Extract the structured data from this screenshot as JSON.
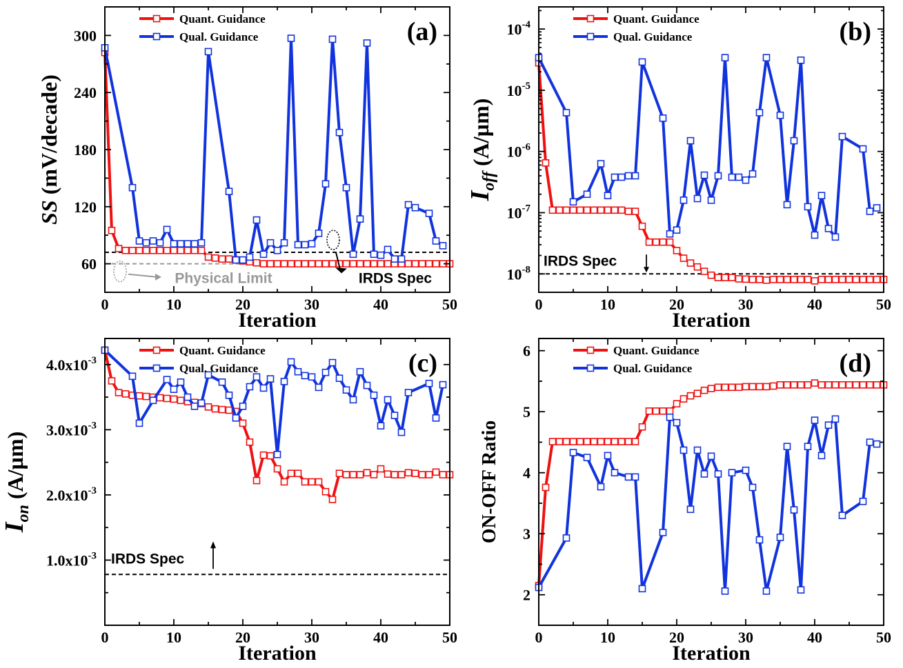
{
  "chart_data": [
    {
      "id": "a",
      "type": "line",
      "panel_label": "(a)",
      "xlabel": "Iteration",
      "ylabel_main": "SS",
      "ylabel_rest": " (mV/decade)",
      "xlim": [
        0,
        50
      ],
      "ylim": [
        30,
        330
      ],
      "yscale": "linear",
      "xticks": [
        0,
        10,
        20,
        30,
        40,
        50
      ],
      "yticks": [
        60,
        120,
        180,
        240,
        300
      ],
      "ytick_labels": [
        "60",
        "120",
        "180",
        "240",
        "300"
      ],
      "legend_position": "top-center",
      "series": [
        {
          "name": "Quant. Guidance",
          "color": "#ee1111",
          "x": [
            0,
            1,
            2,
            3,
            4,
            5,
            6,
            7,
            8,
            9,
            10,
            11,
            12,
            13,
            14,
            15,
            16,
            17,
            18,
            19,
            20,
            21,
            22,
            23,
            24,
            25,
            26,
            27,
            28,
            29,
            30,
            31,
            32,
            33,
            34,
            35,
            36,
            37,
            38,
            39,
            40,
            41,
            42,
            43,
            44,
            45,
            46,
            47,
            48,
            49,
            50
          ],
          "y": [
            282,
            95,
            76,
            74,
            74,
            74,
            74,
            74,
            74,
            74,
            74,
            74,
            74,
            74,
            74,
            67,
            66,
            65,
            65,
            64,
            63,
            62,
            61,
            60,
            60,
            60,
            60,
            60,
            60,
            60,
            60,
            60,
            60,
            60,
            60,
            60,
            60,
            60,
            60,
            60,
            60,
            60,
            60,
            60,
            60,
            60,
            60,
            60,
            60,
            60,
            60
          ]
        },
        {
          "name": "Qual. Guidance",
          "color": "#1133dd",
          "x": [
            0,
            4,
            5,
            6,
            7,
            8,
            9,
            10,
            11,
            12,
            13,
            14,
            15,
            18,
            19,
            20,
            21,
            22,
            23,
            24,
            25,
            26,
            27,
            28,
            29,
            30,
            31,
            32,
            33,
            34,
            35,
            36,
            37,
            38,
            39,
            40,
            41,
            42,
            43,
            44,
            45,
            47,
            48,
            49
          ],
          "y": [
            287,
            140,
            84,
            82,
            84,
            82,
            96,
            81,
            81,
            81,
            81,
            82,
            283,
            136,
            64,
            64,
            67,
            106,
            70,
            82,
            74,
            82,
            297,
            80,
            80,
            81,
            92,
            144,
            296,
            198,
            140,
            70,
            107,
            292,
            70,
            69,
            75,
            65,
            65,
            122,
            119,
            113,
            84,
            79
          ]
        }
      ],
      "reference_lines": [
        {
          "name": "IRDS Spec",
          "y": 72
        },
        {
          "name": "Physical Limit",
          "y": 60
        }
      ]
    },
    {
      "id": "b",
      "type": "line",
      "panel_label": "(b)",
      "xlabel": "Iteration",
      "ylabel_main": "I",
      "ylabel_sub": "off",
      "ylabel_rest": " (A/µm)",
      "xlim": [
        0,
        50
      ],
      "ylim": [
        5e-09,
        0.00023
      ],
      "yscale": "log",
      "xticks": [
        0,
        10,
        20,
        30,
        40,
        50
      ],
      "yticks": [
        1e-08,
        1e-07,
        1e-06,
        1e-05,
        0.0001
      ],
      "ytick_exponents": [
        "-8",
        "-7",
        "-6",
        "-5",
        "-4"
      ],
      "ytick_base": "10",
      "legend_position": "top-center",
      "series": [
        {
          "name": "Quant. Guidance",
          "color": "#ee1111",
          "x": [
            0,
            1,
            2,
            3,
            4,
            5,
            6,
            7,
            8,
            9,
            10,
            11,
            12,
            13,
            14,
            15,
            16,
            17,
            18,
            19,
            20,
            21,
            22,
            23,
            24,
            25,
            26,
            27,
            28,
            29,
            30,
            31,
            32,
            33,
            34,
            35,
            36,
            37,
            38,
            39,
            40,
            41,
            42,
            43,
            44,
            45,
            46,
            47,
            48,
            49,
            50
          ],
          "y": [
            2.8e-05,
            6.5e-07,
            1.1e-07,
            1.1e-07,
            1.1e-07,
            1.1e-07,
            1.1e-07,
            1.1e-07,
            1.1e-07,
            1.1e-07,
            1.1e-07,
            1.1e-07,
            1.1e-07,
            1.05e-07,
            1.05e-07,
            6e-08,
            3.3e-08,
            3.3e-08,
            3.3e-08,
            3.3e-08,
            2.4e-08,
            1.8e-08,
            1.5e-08,
            1.3e-08,
            1.1e-08,
            9.5e-09,
            8.7e-09,
            8.7e-09,
            8.7e-09,
            8.3e-09,
            8.2e-09,
            8.1e-09,
            8.1e-09,
            7.9e-09,
            8.1e-09,
            8.1e-09,
            8.1e-09,
            8.1e-09,
            8.1e-09,
            8.1e-09,
            7.7e-09,
            8.1e-09,
            8.1e-09,
            8.1e-09,
            8.1e-09,
            8.1e-09,
            8.1e-09,
            8.1e-09,
            8.1e-09,
            8.1e-09,
            8.1e-09
          ]
        },
        {
          "name": "Qual. Guidance",
          "color": "#1133dd",
          "x": [
            0,
            4,
            5,
            7,
            9,
            10,
            11,
            12,
            13,
            14,
            15,
            18,
            19,
            20,
            21,
            22,
            23,
            24,
            25,
            26,
            27,
            28,
            29,
            30,
            31,
            32,
            33,
            35,
            36,
            37,
            38,
            39,
            40,
            41,
            42,
            43,
            44,
            47,
            48,
            49
          ],
          "y": [
            3.4e-05,
            4.3e-06,
            1.5e-07,
            2e-07,
            6.3e-07,
            1.9e-07,
            3.8e-07,
            3.8e-07,
            4e-07,
            4e-07,
            2.9e-05,
            3.5e-06,
            4.5e-08,
            5.2e-08,
            1.6e-07,
            1.5e-06,
            1.7e-07,
            4.1e-07,
            1.6e-07,
            4e-07,
            3.4e-05,
            3.8e-07,
            3.8e-07,
            3.4e-07,
            4.3e-07,
            4.3e-06,
            3.4e-05,
            3.9e-06,
            1.35e-07,
            1.5e-06,
            3.1e-05,
            1.25e-07,
            4.3e-08,
            1.9e-07,
            5.5e-08,
            4e-08,
            1.75e-06,
            1.1e-06,
            1.05e-07,
            1.2e-07
          ]
        }
      ],
      "reference_lines": [
        {
          "name": "IRDS Spec",
          "y": 1e-08
        }
      ]
    },
    {
      "id": "c",
      "type": "line",
      "panel_label": "(c)",
      "xlabel": "Iteration",
      "ylabel_main": "I",
      "ylabel_sub": "on",
      "ylabel_rest": " (A/µm)",
      "xlim": [
        0,
        50
      ],
      "ylim": [
        0.0,
        0.0044
      ],
      "yscale": "linear",
      "xticks": [
        0,
        10,
        20,
        30,
        40,
        50
      ],
      "yticks": [
        0.001,
        0.002,
        0.003,
        0.004
      ],
      "ytick_labels": [
        "1.0x10",
        "2.0x10",
        "3.0x10",
        "4.0x10"
      ],
      "ytick_exponent": "-3",
      "legend_position": "top-center",
      "series": [
        {
          "name": "Quant. Guidance",
          "color": "#ee1111",
          "x": [
            0,
            1,
            2,
            3,
            4,
            5,
            6,
            7,
            8,
            9,
            10,
            11,
            12,
            13,
            14,
            15,
            16,
            17,
            18,
            19,
            20,
            21,
            22,
            23,
            24,
            25,
            26,
            27,
            28,
            29,
            30,
            31,
            32,
            33,
            34,
            35,
            36,
            37,
            38,
            39,
            40,
            41,
            42,
            43,
            44,
            45,
            46,
            47,
            48,
            49,
            50
          ],
          "y": [
            0.00422,
            0.00375,
            0.00357,
            0.00355,
            0.00353,
            0.00352,
            0.00351,
            0.0035,
            0.00349,
            0.00348,
            0.00347,
            0.00345,
            0.00343,
            0.00342,
            0.0034,
            0.00335,
            0.00332,
            0.00331,
            0.0033,
            0.00328,
            0.0031,
            0.00281,
            0.00222,
            0.00261,
            0.0026,
            0.0024,
            0.0022,
            0.00233,
            0.00233,
            0.0022,
            0.0022,
            0.0022,
            0.00205,
            0.00193,
            0.00233,
            0.00231,
            0.00231,
            0.00231,
            0.00234,
            0.00231,
            0.0024,
            0.00232,
            0.00231,
            0.00231,
            0.00234,
            0.00233,
            0.00231,
            0.00231,
            0.00235,
            0.00231,
            0.00231
          ]
        },
        {
          "name": "Qual. Guidance",
          "color": "#1133dd",
          "x": [
            0,
            4,
            5,
            7,
            9,
            10,
            11,
            12,
            13,
            14,
            15,
            17,
            18,
            19,
            20,
            21,
            22,
            23,
            24,
            25,
            26,
            27,
            28,
            29,
            30,
            31,
            32,
            33,
            34,
            35,
            36,
            37,
            38,
            39,
            40,
            41,
            42,
            43,
            44,
            47,
            48,
            49
          ],
          "y": [
            0.00422,
            0.00382,
            0.0031,
            0.00345,
            0.00377,
            0.00362,
            0.00373,
            0.0035,
            0.00336,
            0.00341,
            0.00384,
            0.00373,
            0.00353,
            0.00318,
            0.00336,
            0.00366,
            0.00381,
            0.00364,
            0.00378,
            0.00262,
            0.00374,
            0.00404,
            0.00389,
            0.00383,
            0.00381,
            0.00365,
            0.00388,
            0.00403,
            0.00379,
            0.00361,
            0.00346,
            0.00389,
            0.00368,
            0.00353,
            0.00306,
            0.00346,
            0.00322,
            0.00296,
            0.00357,
            0.00371,
            0.00318,
            0.00369
          ]
        }
      ],
      "reference_lines": [
        {
          "name": "IRDS Spec",
          "y": 0.00078
        }
      ]
    },
    {
      "id": "d",
      "type": "line",
      "panel_label": "(d)",
      "xlabel": "Iteration",
      "ylabel_main": "ON-OFF Ratio",
      "xlim": [
        0,
        50
      ],
      "ylim": [
        1.5,
        6.2
      ],
      "yscale": "linear",
      "xticks": [
        0,
        10,
        20,
        30,
        40,
        50
      ],
      "yticks": [
        2,
        3,
        4,
        5,
        6
      ],
      "ytick_labels": [
        "2",
        "3",
        "4",
        "5",
        "6"
      ],
      "legend_position": "top-center",
      "series": [
        {
          "name": "Quant. Guidance",
          "color": "#ee1111",
          "x": [
            0,
            1,
            2,
            3,
            4,
            5,
            6,
            7,
            8,
            9,
            10,
            11,
            12,
            13,
            14,
            15,
            16,
            17,
            18,
            19,
            20,
            21,
            22,
            23,
            24,
            25,
            26,
            27,
            28,
            29,
            30,
            31,
            32,
            33,
            34,
            35,
            36,
            37,
            38,
            39,
            40,
            41,
            42,
            43,
            44,
            45,
            46,
            47,
            48,
            49,
            50
          ],
          "y": [
            2.15,
            3.76,
            4.51,
            4.51,
            4.51,
            4.51,
            4.51,
            4.51,
            4.51,
            4.51,
            4.51,
            4.51,
            4.51,
            4.51,
            4.51,
            4.75,
            5.01,
            5.01,
            5.01,
            5.01,
            5.13,
            5.21,
            5.26,
            5.3,
            5.35,
            5.38,
            5.4,
            5.4,
            5.4,
            5.4,
            5.41,
            5.41,
            5.41,
            5.41,
            5.42,
            5.44,
            5.44,
            5.44,
            5.44,
            5.44,
            5.47,
            5.44,
            5.44,
            5.44,
            5.44,
            5.44,
            5.44,
            5.44,
            5.44,
            5.44,
            5.44
          ]
        },
        {
          "name": "Qual. Guidance",
          "color": "#1133dd",
          "x": [
            0,
            4,
            5,
            7,
            9,
            10,
            11,
            13,
            14,
            15,
            18,
            19,
            20,
            21,
            22,
            23,
            24,
            25,
            26,
            27,
            28,
            30,
            31,
            32,
            33,
            35,
            36,
            37,
            38,
            39,
            40,
            41,
            42,
            43,
            44,
            47,
            48,
            49
          ],
          "y": [
            2.12,
            2.93,
            4.33,
            4.25,
            3.77,
            4.28,
            4.0,
            3.93,
            3.93,
            2.1,
            3.02,
            4.91,
            4.82,
            4.37,
            3.4,
            4.37,
            3.98,
            4.27,
            3.98,
            2.06,
            4.0,
            4.04,
            3.76,
            2.9,
            2.06,
            2.94,
            4.43,
            3.39,
            2.08,
            4.43,
            4.86,
            4.28,
            4.78,
            4.88,
            3.3,
            3.53,
            4.5,
            4.47
          ]
        }
      ]
    }
  ],
  "annotations": {
    "a_irds": "IRDS Spec",
    "a_physical": "Physical Limit",
    "b_irds": "IRDS Spec",
    "c_irds": "IRDS Spec"
  }
}
